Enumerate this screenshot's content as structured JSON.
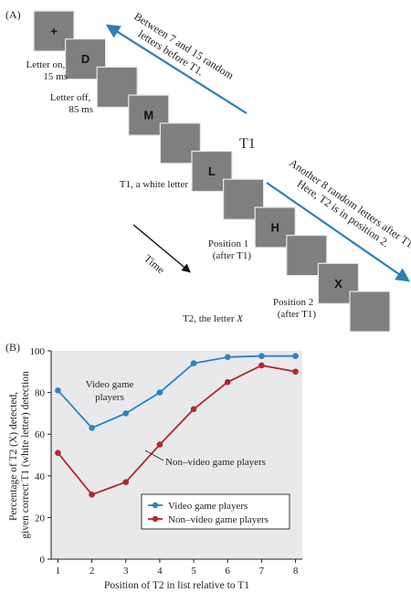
{
  "panel_a": {
    "label": "(A)",
    "cards": [
      {
        "letter": "+"
      },
      {
        "letter": "D"
      },
      {
        "letter": ""
      },
      {
        "letter": "M"
      },
      {
        "letter": ""
      },
      {
        "letter": "L"
      },
      {
        "letter": ""
      },
      {
        "letter": "H"
      },
      {
        "letter": ""
      },
      {
        "letter": "X"
      },
      {
        "letter": ""
      }
    ],
    "letter_on": [
      "Letter on,",
      "15 ms"
    ],
    "letter_off": [
      "Letter off,",
      "85 ms"
    ],
    "t1_heading": "T1",
    "t1_caption": "T1, a white letter",
    "pos1": [
      "Position 1",
      "(after T1)"
    ],
    "pos2": [
      "Position 2",
      "(after T1)"
    ],
    "t2_caption_prefix": "T2, the letter ",
    "t2_caption_letter": "X",
    "time_label": "Time",
    "arrow_upper": [
      "Between 7 and 15 random",
      "letters before T1."
    ],
    "arrow_lower": [
      "Another 8 random letters after T1.",
      "Here, T2 is in position 2."
    ],
    "colors": {
      "card": "#7f7f7f",
      "arrow": "#2f7fb5"
    }
  },
  "panel_b": {
    "label": "(B)",
    "chart_data": {
      "type": "line",
      "x": [
        1,
        2,
        3,
        4,
        5,
        6,
        7,
        8
      ],
      "series": [
        {
          "name": "Video game players",
          "color": "#2b83c3",
          "values": [
            81,
            63,
            70,
            80,
            94,
            97,
            97.5,
            97.5
          ]
        },
        {
          "name": "Non–video game players",
          "color": "#b0282e",
          "values": [
            51,
            31,
            37,
            55,
            72,
            85,
            93,
            90
          ]
        }
      ],
      "xlabel": "Position of T2 in list relative to T1",
      "ylabel": [
        "Percentage of T2 (X) detected,",
        "given correct T1 (white letter) detection"
      ],
      "xticks": [
        "1",
        "2",
        "3",
        "4",
        "5",
        "6",
        "7",
        "8"
      ],
      "yticks": [
        "0",
        "20",
        "40",
        "60",
        "80",
        "100"
      ],
      "xlim": [
        0.8,
        8.2
      ],
      "ylim": [
        0,
        100
      ],
      "grid": false,
      "background": "#e9e9ec",
      "legend": {
        "placement": "bottom-right",
        "entries": [
          "Video game players",
          "Non–video game players"
        ]
      },
      "annotations": [
        {
          "series": 0,
          "lines": [
            "Video game",
            "players"
          ]
        },
        {
          "series": 1,
          "lines": [
            "Non–video game players"
          ]
        }
      ]
    }
  }
}
